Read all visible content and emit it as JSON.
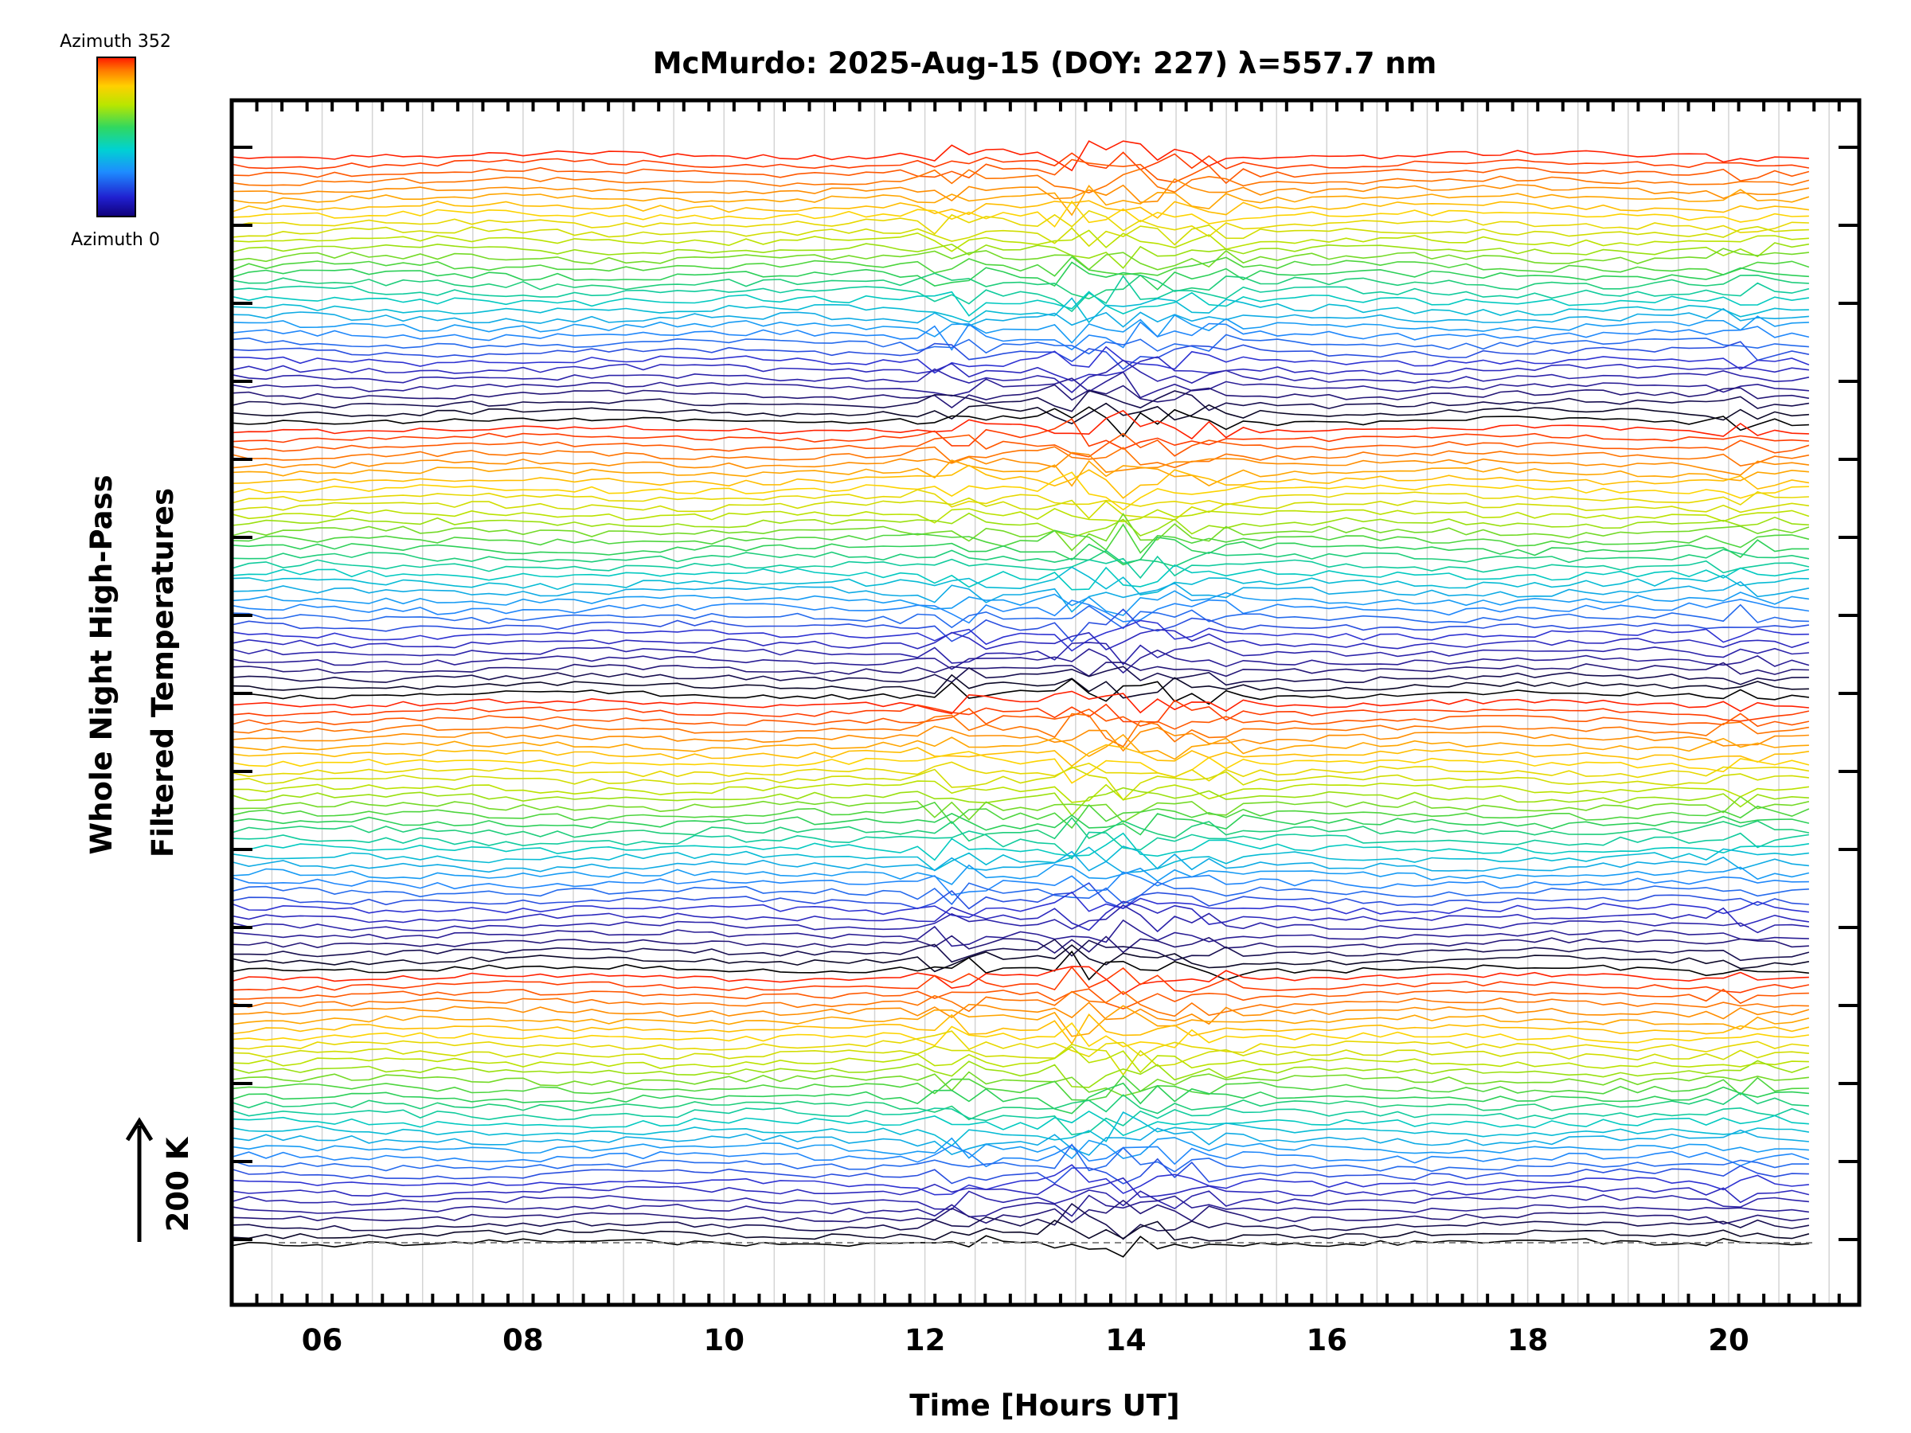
{
  "chart_data": {
    "type": "line",
    "title": "McMurdo: 2025-Aug-15 (DOY: 227) λ=557.7 nm",
    "xlabel": "Time [Hours UT]",
    "ylabel_line1": "Whole Night High-Pass",
    "ylabel_line2": "Filtered Temperatures",
    "scale_label": "200 K",
    "colorbar": {
      "top_label": "Azimuth 352",
      "bottom_label": "Azimuth 0"
    },
    "xlim": [
      5.1,
      21.3
    ],
    "x_ticks": [
      "06",
      "08",
      "10",
      "12",
      "14",
      "16",
      "18",
      "20"
    ],
    "x_tick_values": [
      6,
      8,
      10,
      12,
      14,
      16,
      18,
      20
    ],
    "grid": true,
    "legend": "none",
    "series_count": 128,
    "series_colors_by_azimuth": [
      "#000000",
      "#2a1a8a",
      "#3030d0",
      "#1e90ff",
      "#00c8c8",
      "#30d050",
      "#b4e400",
      "#ffd200",
      "#ff8000",
      "#ff2000"
    ],
    "time_range": [
      5.1,
      20.8
    ],
    "zero_reference": "dashed"
  }
}
